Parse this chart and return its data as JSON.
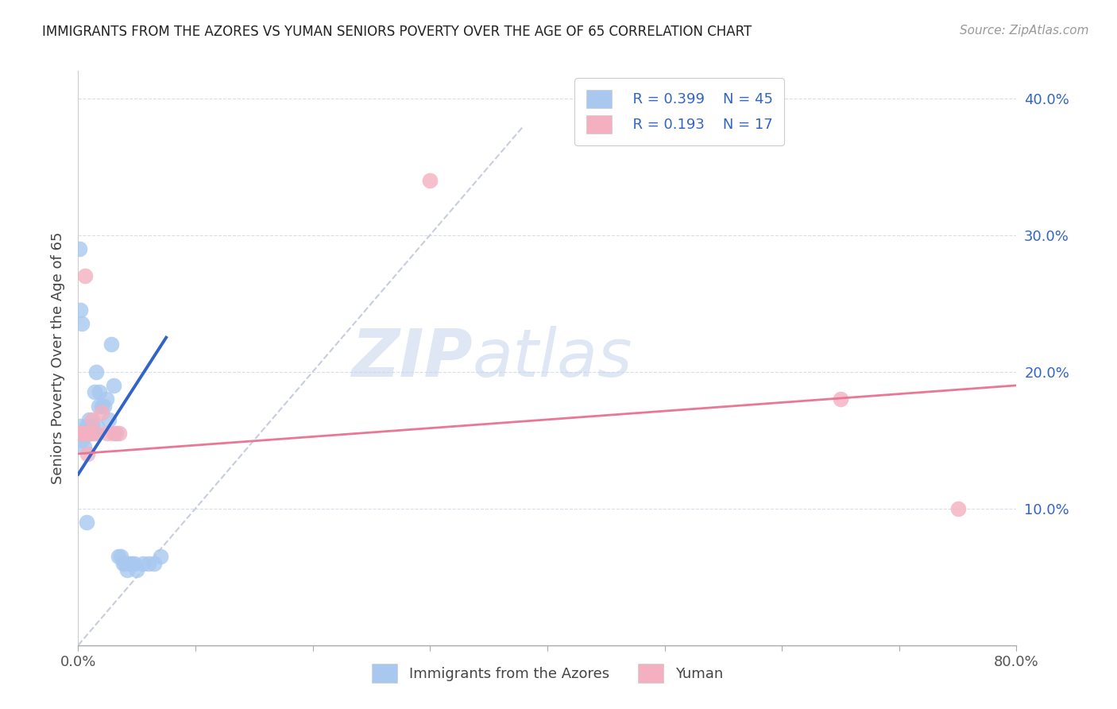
{
  "title": "IMMIGRANTS FROM THE AZORES VS YUMAN SENIORS POVERTY OVER THE AGE OF 65 CORRELATION CHART",
  "source": "Source: ZipAtlas.com",
  "ylabel": "Seniors Poverty Over the Age of 65",
  "watermark_zip": "ZIP",
  "watermark_atlas": "atlas",
  "legend_r1": "R = 0.399",
  "legend_n1": "N = 45",
  "legend_r2": "R = 0.193",
  "legend_n2": "N = 17",
  "legend_label1": "Immigrants from the Azores",
  "legend_label2": "Yuman",
  "xlim": [
    0.0,
    0.8
  ],
  "ylim": [
    -0.02,
    0.42
  ],
  "plot_ylim": [
    0.0,
    0.42
  ],
  "xticks": [
    0.0,
    0.1,
    0.2,
    0.3,
    0.4,
    0.5,
    0.6,
    0.7,
    0.8
  ],
  "xticklabels": [
    "0.0%",
    "",
    "",
    "",
    "",
    "",
    "",
    "",
    "80.0%"
  ],
  "yticks": [
    0.1,
    0.2,
    0.3,
    0.4
  ],
  "yticklabels": [
    "10.0%",
    "20.0%",
    "30.0%",
    "40.0%"
  ],
  "blue_color": "#a8c8f0",
  "pink_color": "#f4b0c0",
  "trend_blue": "#3264c8",
  "trend_pink": "#e87896",
  "trend_gray": "#c0c8d8",
  "blue_scatter_x": [
    0.001,
    0.002,
    0.003,
    0.004,
    0.005,
    0.006,
    0.007,
    0.008,
    0.009,
    0.01,
    0.011,
    0.012,
    0.013,
    0.014,
    0.015,
    0.016,
    0.017,
    0.018,
    0.02,
    0.022,
    0.024,
    0.026,
    0.028,
    0.03,
    0.032,
    0.034,
    0.036,
    0.038,
    0.04,
    0.042,
    0.044,
    0.046,
    0.048,
    0.05,
    0.055,
    0.06,
    0.065,
    0.07,
    0.001,
    0.002,
    0.003,
    0.004,
    0.005,
    0.006,
    0.007
  ],
  "blue_scatter_y": [
    0.155,
    0.16,
    0.15,
    0.155,
    0.145,
    0.155,
    0.16,
    0.155,
    0.165,
    0.155,
    0.155,
    0.16,
    0.155,
    0.185,
    0.2,
    0.16,
    0.175,
    0.185,
    0.175,
    0.175,
    0.18,
    0.165,
    0.22,
    0.19,
    0.155,
    0.065,
    0.065,
    0.06,
    0.06,
    0.055,
    0.06,
    0.06,
    0.06,
    0.055,
    0.06,
    0.06,
    0.06,
    0.065,
    0.29,
    0.245,
    0.235,
    0.155,
    0.155,
    0.155,
    0.09
  ],
  "pink_scatter_x": [
    0.002,
    0.003,
    0.005,
    0.006,
    0.007,
    0.008,
    0.009,
    0.01,
    0.012,
    0.015,
    0.02,
    0.025,
    0.03,
    0.035,
    0.3,
    0.65,
    0.75
  ],
  "pink_scatter_y": [
    0.155,
    0.155,
    0.155,
    0.27,
    0.155,
    0.14,
    0.155,
    0.155,
    0.165,
    0.155,
    0.17,
    0.155,
    0.155,
    0.155,
    0.34,
    0.18,
    0.1
  ],
  "blue_trend_x": [
    0.0,
    0.075
  ],
  "blue_trend_y": [
    0.125,
    0.225
  ],
  "pink_trend_x": [
    0.0,
    0.8
  ],
  "pink_trend_y": [
    0.14,
    0.19
  ],
  "gray_trend_x": [
    0.0,
    0.38
  ],
  "gray_trend_y": [
    0.0,
    0.38
  ]
}
